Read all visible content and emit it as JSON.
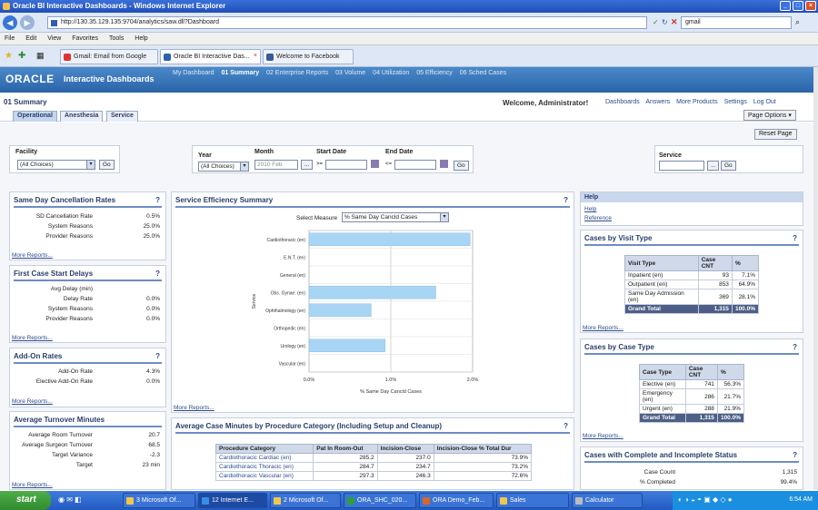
{
  "window": {
    "title": "Oracle BI Interactive Dashboards - Windows Internet Explorer"
  },
  "browser": {
    "address": "http://130.35.129.135:9704/analytics/saw.dll?Dashboard",
    "search_value": "gmail",
    "menu": [
      "File",
      "Edit",
      "View",
      "Favorites",
      "Tools",
      "Help"
    ],
    "tabs": [
      "Gmail: Email from Google",
      "Oracle BI Interactive Das...",
      "Welcome to Facebook"
    ]
  },
  "app": {
    "logo": "ORACLE",
    "name": "Interactive Dashboards",
    "dashboards": [
      "My Dashboard",
      "01 Summary",
      "02 Enterprise Reports",
      "03 Volume",
      "04 Utilization",
      "05 Efficiency",
      "06 Sched Cases"
    ],
    "page_title": "01 Summary",
    "welcome": "Welcome, Administrator!",
    "links": [
      "Dashboards",
      "Answers",
      "More Products",
      "Settings",
      "Log Out"
    ],
    "page_tabs": [
      "Operational",
      "Anesthesia",
      "Service"
    ],
    "page_options": "Page Options",
    "reset": "Reset Page"
  },
  "prompts": {
    "facility_label": "Facility",
    "facility_value": "(All Choices)",
    "year_label": "Year",
    "year_value": "(All Choices)",
    "month_label": "Month",
    "month_value": "2010 Feb",
    "start_label": "Start Date",
    "end_label": "End Date",
    "service_label": "Service",
    "go": "Go",
    "ellipsis": "...",
    "arrow_start": ">=",
    "arrow_end": "<="
  },
  "cancel": {
    "title": "Same Day Cancellation Rates",
    "rows": [
      {
        "label": "SD Cancellation Rate",
        "value": "0.5%"
      },
      {
        "label": "System Reasons",
        "value": "25.0%"
      },
      {
        "label": "Provider Reasons",
        "value": "25.0%"
      }
    ]
  },
  "delays": {
    "title": "First Case Start Delays",
    "rows": [
      {
        "label": "Avg Delay (min)",
        "value": ""
      },
      {
        "label": "Delay Rate",
        "value": "0.0%"
      },
      {
        "label": "System Reasons",
        "value": "0.0%"
      },
      {
        "label": "Provider Reasons",
        "value": "0.0%"
      }
    ]
  },
  "addon": {
    "title": "Add-On Rates",
    "rows": [
      {
        "label": "Add-On Rate",
        "value": "4.3%"
      },
      {
        "label": "Elective Add-On Rate",
        "value": "0.0%"
      }
    ]
  },
  "turnover": {
    "title": "Average Turnover Minutes",
    "rows": [
      {
        "label": "Average Room Turnover",
        "value": "20.7"
      },
      {
        "label": "Average Surgeon Turnover",
        "value": "68.5"
      },
      {
        "label": "Target Variance",
        "value": "-2.3"
      },
      {
        "label": "Target",
        "value": "23 min"
      }
    ]
  },
  "more_reports": "More Reports...",
  "help_icon": "?",
  "efficiency": {
    "title": "Service Efficiency Summary",
    "measure_label": "Select Measure",
    "measure_value": "% Same Day Cancld Cases",
    "y_axis_label": "Service",
    "x_axis_label": "% Same Day Cancld Cases",
    "ticks": [
      "0.0%",
      "1.0%",
      "2.0%"
    ]
  },
  "chart_data": {
    "type": "bar",
    "title": "Service Efficiency Summary",
    "xlabel": "% Same Day Cancld Cases",
    "ylabel": "Service",
    "categories": [
      "Cardiothoracic (en)",
      "E.N.T. (en)",
      "General (en)",
      "Obs. Gynae. (en)",
      "Ophthalmology (en)",
      "Orthopedic (en)",
      "Urology (en)",
      "Vascular (en)"
    ],
    "values": [
      1.97,
      0,
      0,
      1.55,
      0.76,
      0,
      0.93,
      0
    ],
    "xlim": [
      0,
      2.0
    ],
    "grid": true
  },
  "avgcase": {
    "title": "Average Case Minutes by Procedure Category (Including Setup and Cleanup)",
    "headers": [
      "Procedure Category",
      "Pat In Room-Out",
      "Incision-Close",
      "Incision-Close % Total Dur"
    ],
    "rows": [
      [
        "Cardiothoracic Cardiac (en)",
        "285.2",
        "237.0",
        "73.9%"
      ],
      [
        "Cardiothoracic Thoracic (en)",
        "284.7",
        "234.7",
        "73.2%"
      ],
      [
        "Cardiothoracic Vascular (en)",
        "297.3",
        "246.3",
        "72.6%"
      ]
    ]
  },
  "help_panel": {
    "title": "Help",
    "links": [
      "Help",
      "Reference"
    ]
  },
  "visit": {
    "title": "Cases by Visit Type",
    "headers": [
      "Visit Type",
      "Case CNT",
      "%"
    ],
    "rows": [
      [
        "Inpatient (en)",
        "93",
        "7.1%"
      ],
      [
        "Outpatient (en)",
        "853",
        "64.9%"
      ],
      [
        "Same Day Admission (en)",
        "369",
        "28.1%"
      ]
    ],
    "total": [
      "Grand Total",
      "1,315",
      "100.0%"
    ]
  },
  "casetype": {
    "title": "Cases by Case Type",
    "headers": [
      "Case Type",
      "Case CNT",
      "%"
    ],
    "rows": [
      [
        "Elective (en)",
        "741",
        "56.3%"
      ],
      [
        "Emergency (en)",
        "286",
        "21.7%"
      ],
      [
        "Urgent (en)",
        "288",
        "21.9%"
      ]
    ],
    "total": [
      "Grand Total",
      "1,315",
      "100.0%"
    ]
  },
  "complete": {
    "title": "Cases with Complete and Incomplete Status",
    "rows": [
      {
        "label": "Case Count",
        "value": "1,315"
      },
      {
        "label": "% Completed",
        "value": "99.4%"
      }
    ]
  },
  "taskbar": {
    "start": "start",
    "items": [
      "3 Microsoft Of...",
      "12 Internet E...",
      "2 Microsoft Of...",
      "ORA_SHC_020...",
      "ORA Demo_Feb...",
      "Sales",
      "Calculator"
    ],
    "time": "6:54 AM"
  }
}
